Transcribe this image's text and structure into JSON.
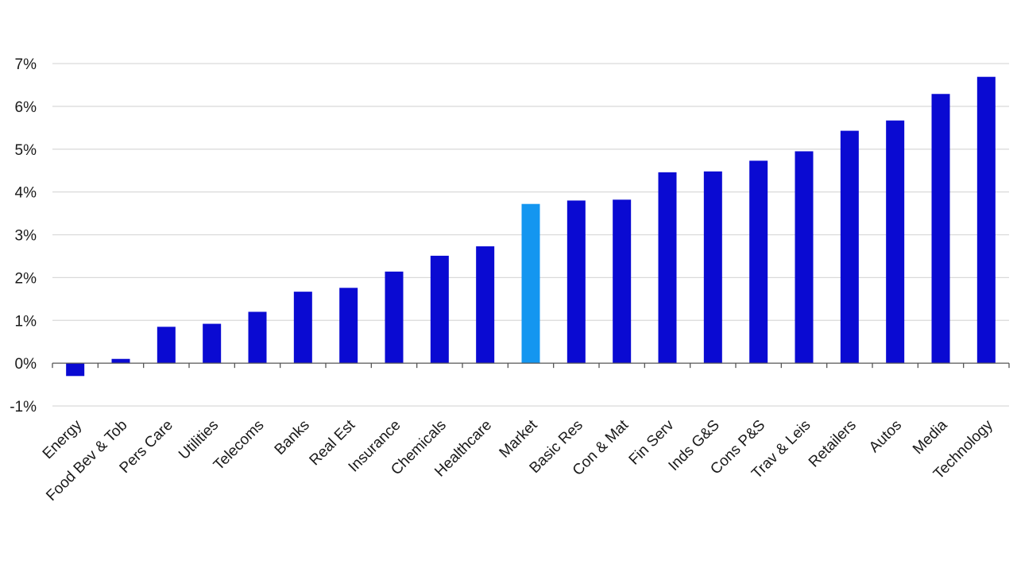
{
  "chart_data": {
    "type": "bar",
    "title": "",
    "xlabel": "",
    "ylabel": "",
    "categories": [
      "Energy",
      "Food Bev & Tob",
      "Pers Care",
      "Utilities",
      "Telecoms",
      "Banks",
      "Real Est",
      "Insurance",
      "Chemicals",
      "Healthcare",
      "Market",
      "Basic Res",
      "Con & Mat",
      "Fin Serv",
      "Inds G&S",
      "Cons P&S",
      "Trav & Leis",
      "Retailers",
      "Autos",
      "Media",
      "Technology"
    ],
    "values": [
      -0.3,
      0.1,
      0.85,
      0.92,
      1.2,
      1.67,
      1.76,
      2.14,
      2.51,
      2.73,
      3.72,
      3.8,
      3.82,
      4.46,
      4.48,
      4.73,
      4.95,
      5.43,
      5.67,
      6.29,
      6.69
    ],
    "ylim": [
      -1,
      7
    ],
    "yticks": [
      -1,
      0,
      1,
      2,
      3,
      4,
      5,
      6,
      7
    ],
    "ytick_labels": [
      "-1%",
      "0%",
      "1%",
      "2%",
      "3%",
      "4%",
      "5%",
      "6%",
      "7%"
    ],
    "highlight_category": "Market",
    "grid": true,
    "colors": {
      "bar": "#0a0ad2",
      "highlight": "#1496f0",
      "grid": "#d9d9d9",
      "axis": "#555555"
    }
  }
}
